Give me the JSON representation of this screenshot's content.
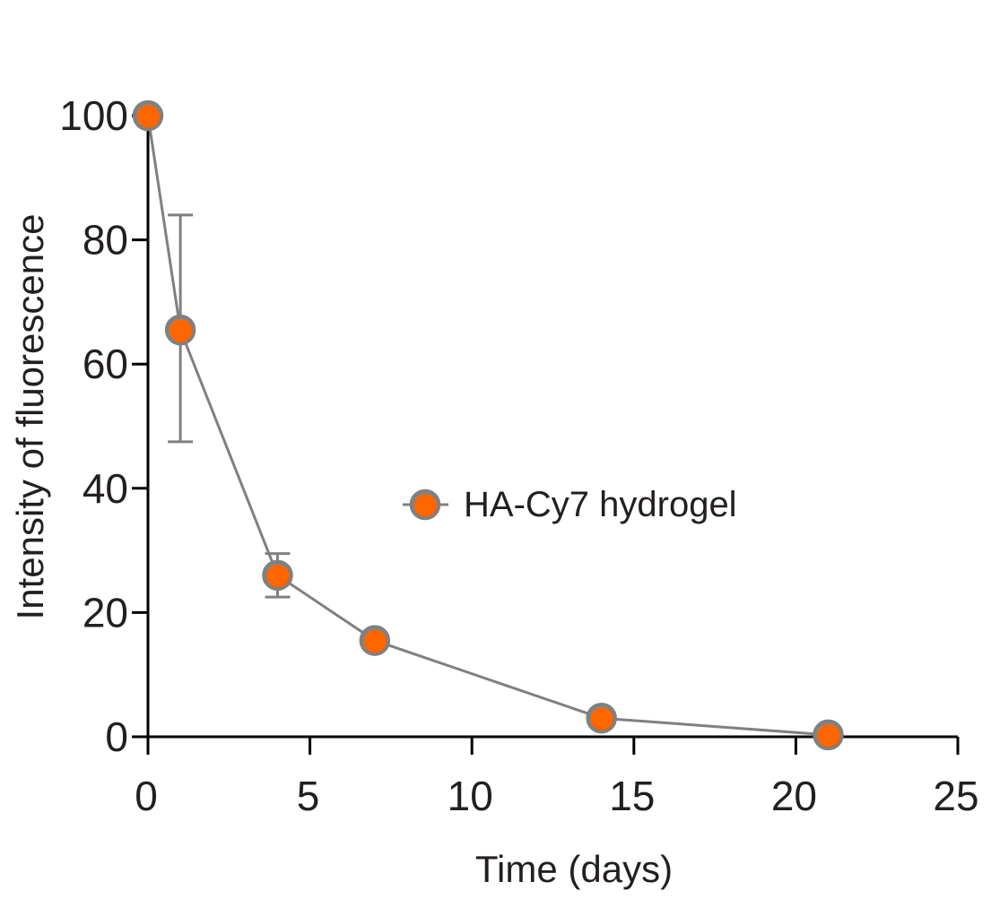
{
  "chart_data": {
    "type": "line",
    "xlabel": "Time (days)",
    "ylabel": "Intensity of fluorescence",
    "xlim": [
      0,
      25
    ],
    "ylim": [
      0,
      100
    ],
    "xticks": [
      0,
      5,
      10,
      15,
      20,
      25
    ],
    "yticks": [
      0,
      20,
      40,
      60,
      80,
      100
    ],
    "legend_position": "center-right",
    "series": [
      {
        "name": "HA-Cy7 hydrogel",
        "x": [
          0,
          1,
          4,
          7,
          14,
          21
        ],
        "y": [
          100,
          65.5,
          26,
          15.5,
          3,
          0.3
        ],
        "error_upper": [
          100,
          84,
          29.5,
          15.5,
          3,
          0.3
        ],
        "error_lower": [
          100,
          47.5,
          22.5,
          15.5,
          3,
          0.3
        ],
        "marker_fill": "#ff6600",
        "marker_edge": "#808080",
        "line_color": "#808080"
      }
    ]
  }
}
